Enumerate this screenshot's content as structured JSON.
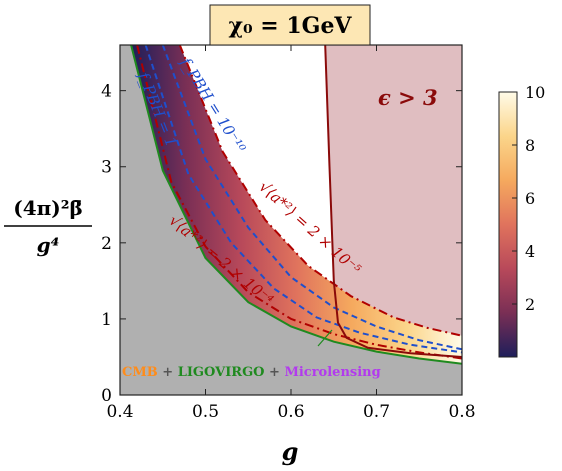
{
  "chart_data": {
    "type": "area",
    "title": "χ₀ = 1GeV",
    "xlabel": "g",
    "ylabel_num": "(4π)²β̄",
    "ylabel_den": "g⁴",
    "xlim": [
      0.4,
      0.8
    ],
    "ylim": [
      0,
      4.6
    ],
    "xticks": [
      0.4,
      0.5,
      0.6,
      0.7,
      0.8
    ],
    "xtick_labels": [
      "0.4",
      "0.5",
      "0.6",
      "0.7",
      "0.8"
    ],
    "yticks": [
      0,
      1,
      2,
      3,
      4
    ],
    "ytick_labels": [
      "0",
      "1",
      "2",
      "3",
      "4"
    ],
    "colorbar": {
      "range": [
        0,
        10
      ],
      "ticks": [
        2,
        4,
        6,
        8,
        10
      ],
      "tick_labels": [
        "2",
        "4",
        "6",
        "8",
        "10"
      ],
      "colors": [
        "#1e1e5a",
        "#7a2f55",
        "#b8495a",
        "#e0735d",
        "#f5a95e",
        "#fbd58a",
        "#fffbe8"
      ]
    },
    "regions": {
      "excluded_gray_label_parts": [
        "CMB",
        " + ",
        "LIGOVIRGO",
        " + ",
        "Microlensing"
      ],
      "excluded_gray_label_colors": [
        "#ff8c1a",
        "#555555",
        "#1f8a1f",
        "#555555",
        "#b23aee"
      ],
      "epsilon_region_label": "ϵ > 3",
      "epsilon_boundary": [
        [
          0.64,
          4.6
        ],
        [
          0.645,
          3.0
        ],
        [
          0.65,
          1.5
        ],
        [
          0.655,
          0.95
        ],
        [
          0.665,
          0.75
        ],
        [
          0.69,
          0.62
        ],
        [
          0.74,
          0.55
        ],
        [
          0.8,
          0.5
        ]
      ]
    },
    "series": [
      {
        "name": "f_PBH = 10⁻¹⁰",
        "style": "dashed",
        "color": "#1f4fcc",
        "points": [
          [
            0.45,
            4.6
          ],
          [
            0.5,
            3.1
          ],
          [
            0.55,
            2.2
          ],
          [
            0.6,
            1.55
          ],
          [
            0.65,
            1.15
          ],
          [
            0.7,
            0.9
          ],
          [
            0.75,
            0.72
          ],
          [
            0.8,
            0.6
          ]
        ]
      },
      {
        "name": "f_PBH = 1",
        "style": "dashed",
        "color": "#1f4fcc",
        "points": [
          [
            0.43,
            4.6
          ],
          [
            0.48,
            2.9
          ],
          [
            0.53,
            2.0
          ],
          [
            0.58,
            1.4
          ],
          [
            0.63,
            1.02
          ],
          [
            0.68,
            0.82
          ],
          [
            0.74,
            0.66
          ],
          [
            0.8,
            0.56
          ]
        ]
      },
      {
        "name": "√⟨a*²⟩ = 2 × 10⁻⁵",
        "style": "dashdot",
        "color": "#b00000",
        "points": [
          [
            0.47,
            4.6
          ],
          [
            0.52,
            3.2
          ],
          [
            0.57,
            2.3
          ],
          [
            0.62,
            1.7
          ],
          [
            0.67,
            1.3
          ],
          [
            0.72,
            1.02
          ],
          [
            0.76,
            0.88
          ],
          [
            0.8,
            0.78
          ]
        ]
      },
      {
        "name": "√⟨a*²⟩ = 2 × 10⁻⁴",
        "style": "dashdot",
        "color": "#b00000",
        "points": [
          [
            0.42,
            4.6
          ],
          [
            0.46,
            2.8
          ],
          [
            0.5,
            1.95
          ],
          [
            0.55,
            1.35
          ],
          [
            0.6,
            1.0
          ],
          [
            0.65,
            0.8
          ],
          [
            0.7,
            0.66
          ],
          [
            0.75,
            0.56
          ],
          [
            0.8,
            0.48
          ]
        ]
      },
      {
        "name": "",
        "style": "solid",
        "color": "#1f8a1f",
        "points": [
          [
            0.413,
            4.6
          ],
          [
            0.45,
            2.95
          ],
          [
            0.5,
            1.8
          ],
          [
            0.55,
            1.22
          ],
          [
            0.6,
            0.9
          ],
          [
            0.65,
            0.7
          ],
          [
            0.7,
            0.57
          ],
          [
            0.75,
            0.48
          ],
          [
            0.8,
            0.41
          ]
        ]
      }
    ]
  }
}
